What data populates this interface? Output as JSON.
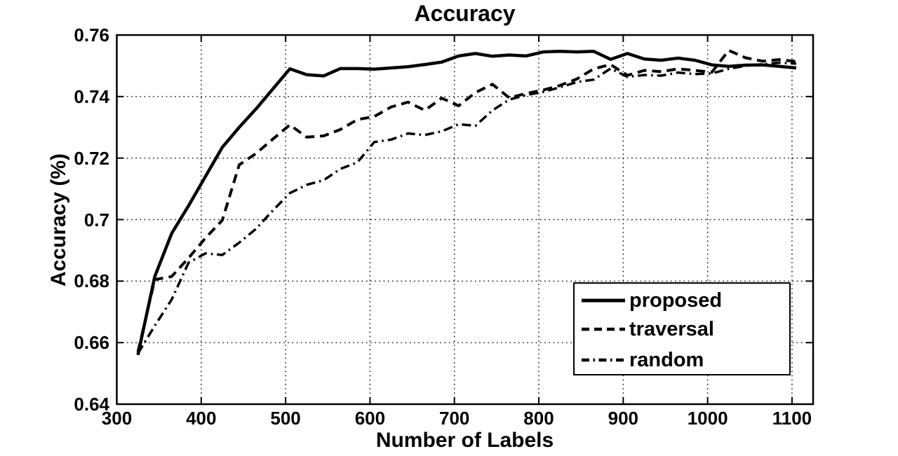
{
  "colors": {
    "line": "#000000",
    "background": "#ffffff",
    "grid": "#000000"
  },
  "chart_data": {
    "type": "line",
    "title": "Accuracy",
    "xlabel": "Number of Labels",
    "ylabel": "Accuracy (%)",
    "xlim": [
      300,
      1125
    ],
    "ylim": [
      0.64,
      0.76
    ],
    "grid": true,
    "legend_position": "lower-right-inside",
    "xticks": [
      "300",
      "400",
      "500",
      "600",
      "700",
      "800",
      "900",
      "1000",
      "1100"
    ],
    "yticks": [
      "0.76",
      "0.74",
      "0.72",
      "0.7",
      "0.68",
      "0.66",
      "0.64"
    ],
    "x": [
      325,
      345,
      365,
      385,
      405,
      425,
      445,
      465,
      485,
      505,
      525,
      545,
      565,
      585,
      605,
      625,
      645,
      665,
      685,
      705,
      725,
      745,
      765,
      785,
      805,
      825,
      845,
      865,
      885,
      905,
      925,
      945,
      965,
      985,
      1005,
      1025,
      1045,
      1065,
      1085,
      1105
    ],
    "series": [
      {
        "name": "proposed",
        "style": "solid",
        "values": [
          0.656,
          0.6815,
          0.6955,
          0.7045,
          0.714,
          0.7235,
          0.73,
          0.736,
          0.7425,
          0.749,
          0.7471,
          0.7467,
          0.7491,
          0.7491,
          0.7489,
          0.7493,
          0.7497,
          0.7504,
          0.7512,
          0.7532,
          0.754,
          0.7531,
          0.7535,
          0.7532,
          0.7545,
          0.7547,
          0.7545,
          0.7547,
          0.7521,
          0.754,
          0.7522,
          0.7518,
          0.7525,
          0.7518,
          0.7503,
          0.7498,
          0.7502,
          0.7503,
          0.7498,
          0.7493
        ]
      },
      {
        "name": "traversal",
        "style": "dashed",
        "values": [
          0.657,
          0.6805,
          0.6815,
          0.6875,
          0.694,
          0.6998,
          0.7178,
          0.7215,
          0.7262,
          0.7308,
          0.7268,
          0.7272,
          0.7293,
          0.7325,
          0.7335,
          0.7366,
          0.7382,
          0.7355,
          0.7395,
          0.737,
          0.7413,
          0.744,
          0.7396,
          0.741,
          0.7421,
          0.7436,
          0.7457,
          0.749,
          0.7504,
          0.7469,
          0.7485,
          0.7481,
          0.749,
          0.7485,
          0.7479,
          0.755,
          0.7526,
          0.7515,
          0.752,
          0.7514
        ]
      },
      {
        "name": "random",
        "style": "dashdot",
        "values": [
          0.6565,
          0.6655,
          0.674,
          0.686,
          0.689,
          0.6885,
          0.6925,
          0.697,
          0.703,
          0.7086,
          0.7113,
          0.7128,
          0.7165,
          0.7186,
          0.7252,
          0.726,
          0.728,
          0.7275,
          0.7287,
          0.731,
          0.7305,
          0.7355,
          0.739,
          0.7405,
          0.7415,
          0.743,
          0.7447,
          0.7455,
          0.7491,
          0.7464,
          0.747,
          0.7468,
          0.7478,
          0.7473,
          0.7475,
          0.749,
          0.75,
          0.7505,
          0.751,
          0.7507
        ]
      }
    ]
  }
}
